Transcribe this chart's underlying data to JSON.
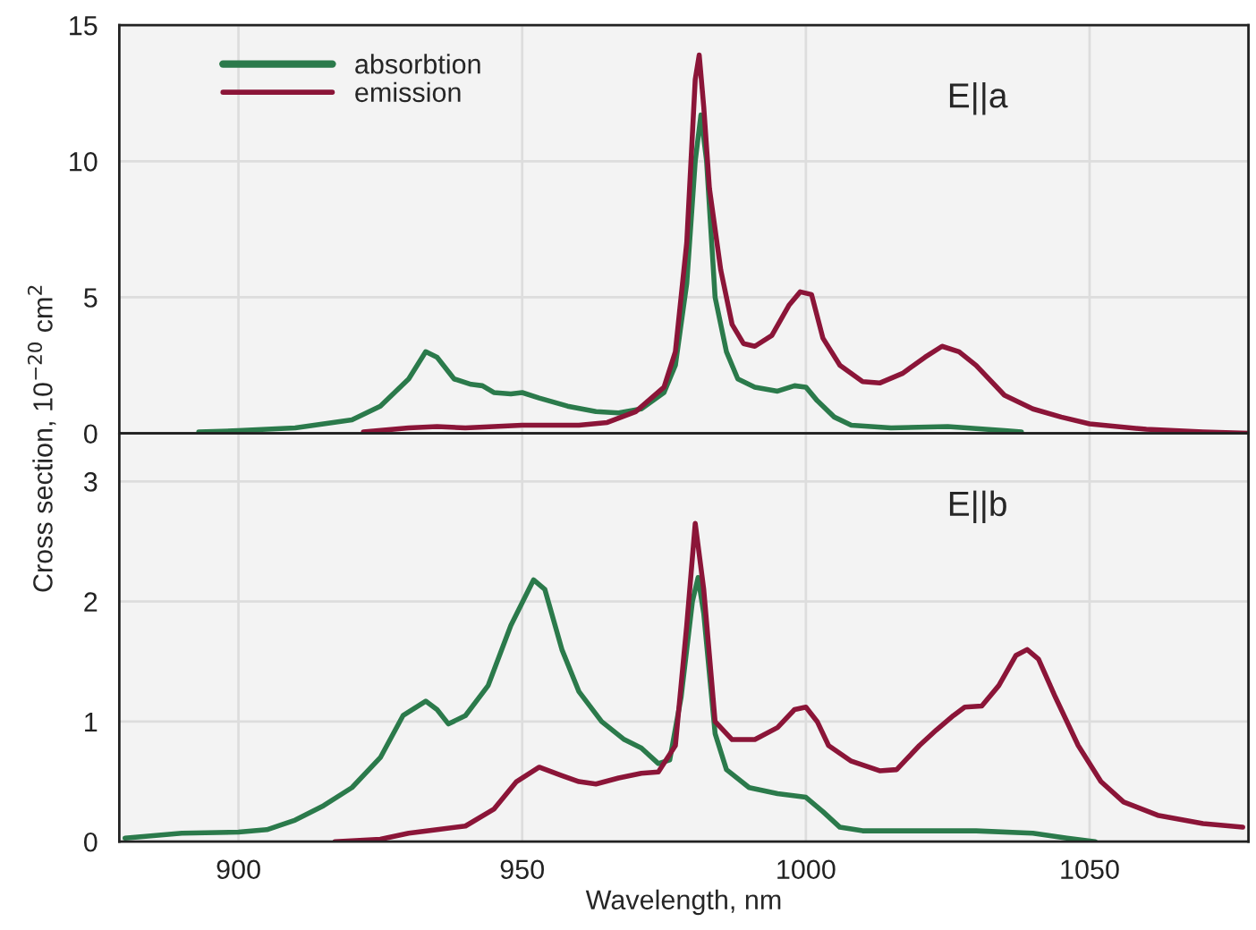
{
  "chart_data": [
    {
      "type": "line",
      "ylabel": "Cross section, 10$^{−20}$ cm$^{2}$",
      "xlim": [
        879,
        1078
      ],
      "xticks": [
        900,
        950,
        1000,
        1050
      ],
      "ylim": [
        0,
        15
      ],
      "yticks": [
        0,
        5,
        10,
        15
      ],
      "tick_labels": "y",
      "grid": true,
      "legend": "top left",
      "annotations": [
        "E||a"
      ],
      "series": [
        {
          "name": "absorbtion",
          "color": "#2b7a4b",
          "x": [
            893,
            900,
            910,
            920,
            925,
            930,
            933,
            935,
            938,
            941,
            943,
            945,
            948,
            950,
            953,
            958,
            963,
            967,
            971,
            975,
            977,
            979,
            980.5,
            981.5,
            982.5,
            984,
            986,
            988,
            991,
            995,
            998,
            1000,
            1002,
            1005,
            1008,
            1015,
            1025,
            1035,
            1038
          ],
          "values": [
            0.05,
            0.1,
            0.2,
            0.5,
            1.0,
            2.0,
            3.0,
            2.8,
            2.0,
            1.8,
            1.75,
            1.5,
            1.45,
            1.5,
            1.3,
            1.0,
            0.8,
            0.75,
            0.9,
            1.5,
            2.5,
            5.5,
            10,
            11.7,
            10,
            5,
            3,
            2.0,
            1.7,
            1.55,
            1.75,
            1.7,
            1.2,
            0.6,
            0.3,
            0.2,
            0.25,
            0.1,
            0.05
          ]
        },
        {
          "name": "emission",
          "color": "#8b1538",
          "x": [
            922,
            930,
            935,
            940,
            950,
            960,
            965,
            970,
            975,
            977,
            979,
            980.5,
            981.2,
            982,
            983,
            985,
            987,
            989,
            991,
            994,
            997,
            999,
            1001,
            1003,
            1006,
            1010,
            1013,
            1017,
            1021,
            1024,
            1027,
            1030,
            1035,
            1040,
            1045,
            1050,
            1060,
            1070,
            1078
          ],
          "values": [
            0.05,
            0.2,
            0.25,
            0.2,
            0.3,
            0.3,
            0.4,
            0.8,
            1.7,
            3,
            7,
            13,
            13.9,
            12,
            9,
            6,
            4,
            3.3,
            3.2,
            3.6,
            4.7,
            5.2,
            5.1,
            3.5,
            2.5,
            1.9,
            1.85,
            2.2,
            2.8,
            3.2,
            3.0,
            2.5,
            1.4,
            0.9,
            0.6,
            0.35,
            0.15,
            0.05,
            0.0
          ]
        }
      ]
    },
    {
      "type": "line",
      "xlabel": "Wavelength, nm",
      "xlim": [
        879,
        1078
      ],
      "xticks": [
        900,
        950,
        1000,
        1050
      ],
      "ylim": [
        0,
        3.4
      ],
      "yticks": [
        0,
        1,
        2,
        3
      ],
      "grid": true,
      "annotations": [
        "E||b"
      ],
      "series": [
        {
          "color": "#2b7a4b",
          "x": [
            880,
            890,
            900,
            905,
            910,
            915,
            920,
            925,
            929,
            933,
            935,
            937,
            940,
            944,
            948,
            952,
            954,
            957,
            960,
            964,
            968,
            971,
            974,
            976,
            978,
            980,
            981,
            982,
            984,
            986,
            990,
            995,
            1000,
            1003,
            1006,
            1010,
            1020,
            1030,
            1040,
            1046,
            1051
          ],
          "values": [
            0.03,
            0.07,
            0.08,
            0.1,
            0.18,
            0.3,
            0.45,
            0.7,
            1.05,
            1.17,
            1.1,
            0.98,
            1.05,
            1.3,
            1.8,
            2.18,
            2.1,
            1.6,
            1.25,
            1.0,
            0.85,
            0.78,
            0.65,
            0.68,
            1.2,
            2.0,
            2.2,
            1.9,
            0.9,
            0.6,
            0.45,
            0.4,
            0.37,
            0.25,
            0.12,
            0.09,
            0.09,
            0.09,
            0.07,
            0.03,
            0.0
          ]
        },
        {
          "color": "#8b1538",
          "x": [
            917,
            925,
            930,
            935,
            940,
            945,
            949,
            953,
            957,
            960,
            963,
            967,
            971,
            974,
            977,
            979,
            980.5,
            982,
            984,
            987,
            991,
            995,
            998,
            1000,
            1002,
            1004,
            1008,
            1013,
            1016,
            1020,
            1023,
            1026,
            1028,
            1031,
            1034,
            1037,
            1039,
            1041,
            1044,
            1048,
            1052,
            1056,
            1062,
            1070,
            1077
          ],
          "values": [
            0.0,
            0.02,
            0.07,
            0.1,
            0.13,
            0.27,
            0.5,
            0.62,
            0.55,
            0.5,
            0.48,
            0.53,
            0.57,
            0.58,
            0.8,
            1.8,
            2.65,
            2.1,
            1.0,
            0.85,
            0.85,
            0.95,
            1.1,
            1.12,
            1.0,
            0.8,
            0.67,
            0.59,
            0.6,
            0.8,
            0.93,
            1.05,
            1.12,
            1.13,
            1.3,
            1.55,
            1.6,
            1.52,
            1.2,
            0.8,
            0.5,
            0.33,
            0.22,
            0.15,
            0.12
          ]
        }
      ]
    }
  ]
}
